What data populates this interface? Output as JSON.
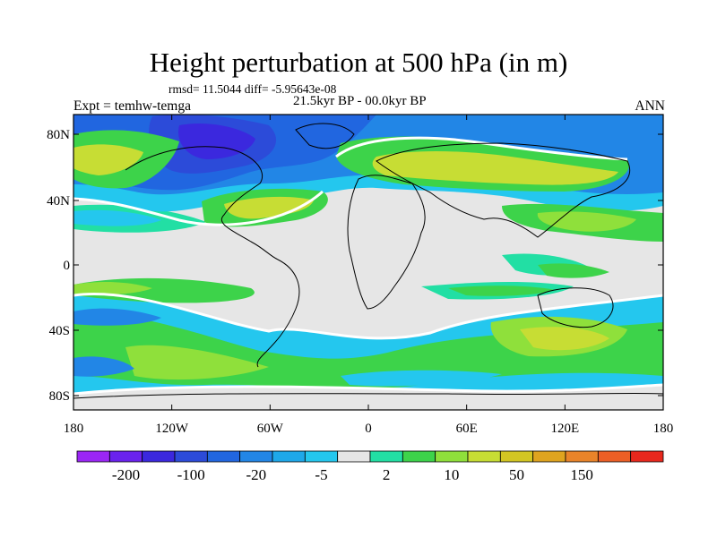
{
  "title": "Height perturbation at 500 hPa (in m)",
  "stats": "rmsd= 11.5044 diff= -5.95643e-08",
  "period": "21.5kyr BP - 00.0kyr BP",
  "expt": "Expt = temhw-temga",
  "season": "ANN",
  "lat_labels": [
    "80N",
    "40N",
    "0",
    "40S",
    "80S"
  ],
  "lon_labels": [
    "180",
    "120W",
    "60W",
    "0",
    "60E",
    "120E",
    "180"
  ],
  "colorbar": {
    "colors": [
      "#9b26f5",
      "#6a22ee",
      "#3b28de",
      "#2c4bd9",
      "#2166e0",
      "#2286e6",
      "#1ea8e9",
      "#24c7ee",
      "#e6e6e6",
      "#22dfa4",
      "#3dd34a",
      "#8fe03b",
      "#c7dd34",
      "#d3c623",
      "#dfa41f",
      "#e9842a",
      "#ec5f26",
      "#e8281d"
    ],
    "labels": [
      "-200",
      "-100",
      "-20",
      "-5",
      "2",
      "10",
      "50",
      "150"
    ]
  }
}
